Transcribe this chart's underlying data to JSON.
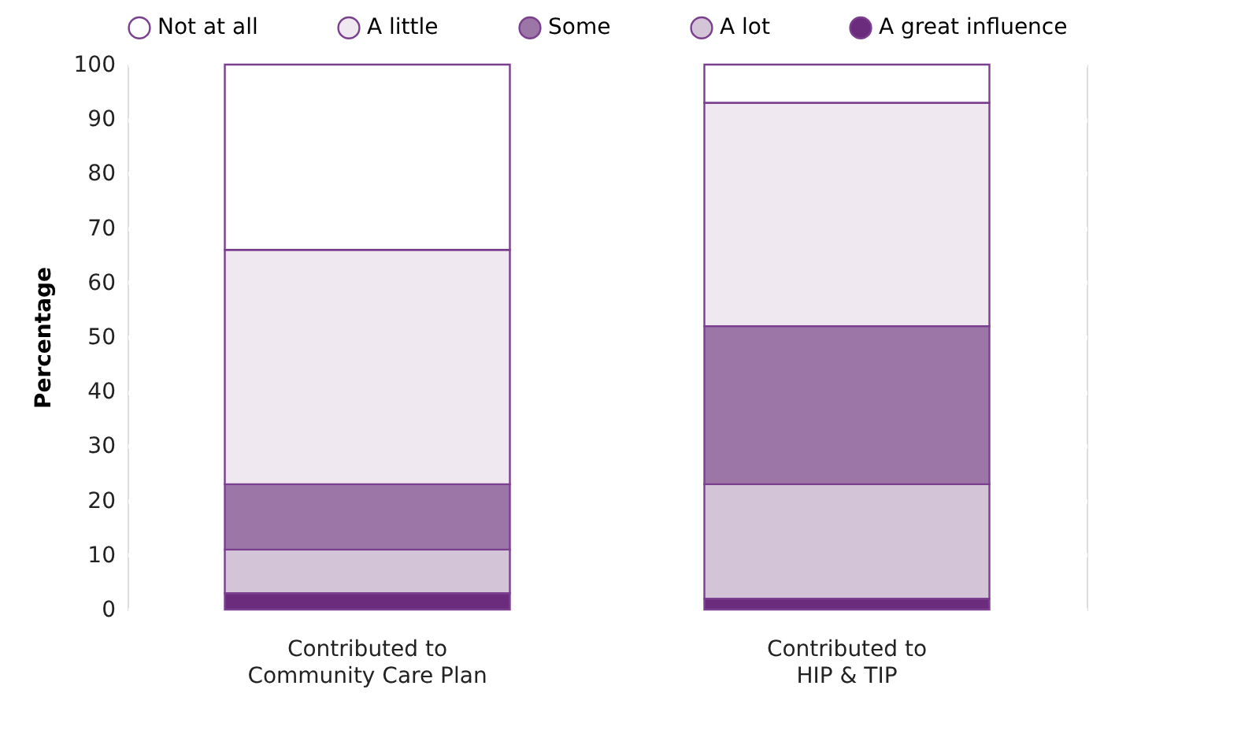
{
  "chart_data": {
    "type": "bar",
    "stacked": true,
    "ylabel": "Percentage",
    "categories": [
      "Contributed to\nCommunity Care Plan",
      "Contributed to\nHIP & TIP"
    ],
    "series": [
      {
        "name": "A great influence",
        "color": "#6b2c7e",
        "values": [
          3,
          2
        ]
      },
      {
        "name": "A lot",
        "color": "#d4c4d8",
        "values": [
          8,
          21
        ]
      },
      {
        "name": "Some",
        "color": "#9b76a6",
        "values": [
          12,
          29
        ]
      },
      {
        "name": "A little",
        "color": "#efe8f0",
        "values": [
          43,
          41
        ]
      },
      {
        "name": "Not at all",
        "color": "#ffffff",
        "values": [
          34,
          7
        ]
      }
    ],
    "ylim": [
      0,
      100
    ],
    "yticks": [
      0,
      10,
      20,
      30,
      40,
      50,
      60,
      70,
      80,
      90,
      100
    ],
    "grid": "y",
    "legend": "top"
  }
}
